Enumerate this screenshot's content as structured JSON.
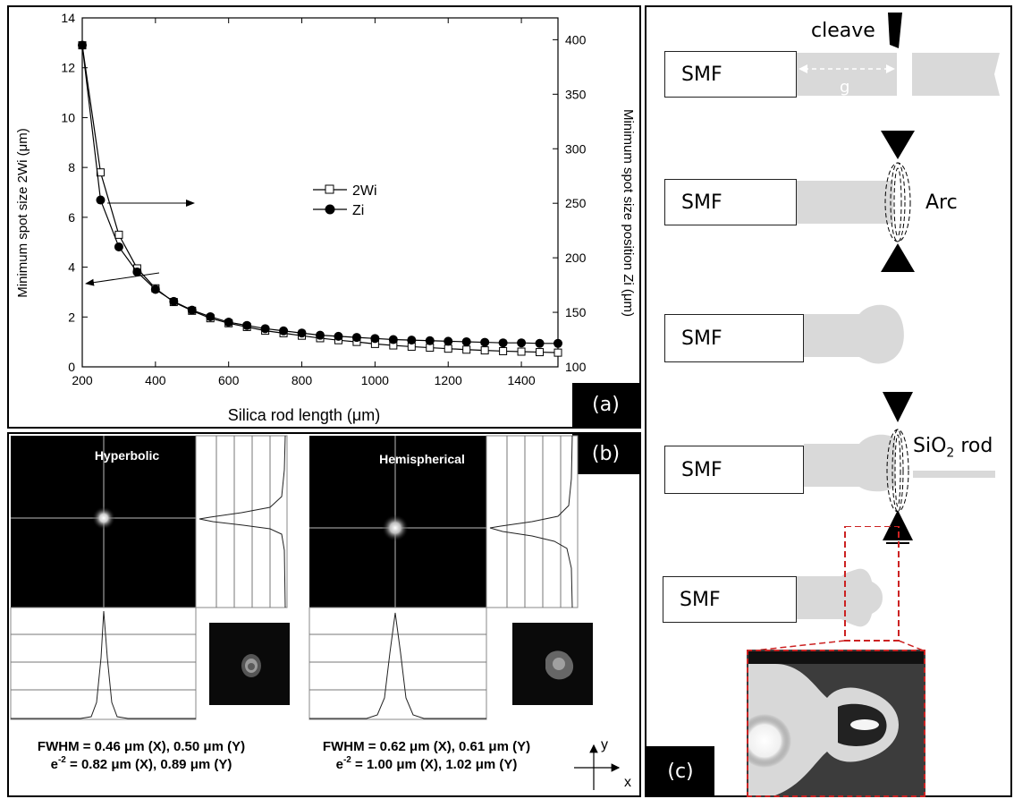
{
  "panel_a": {
    "tag": "(a)",
    "xlabel": "Silica rod length (μm)",
    "ylabel_left": "Minimum spot size 2Wi (μm)",
    "ylabel_right": "Minimum spot size position Zi (μm)",
    "x_ticks": [
      "200",
      "400",
      "600",
      "800",
      "1000",
      "1200",
      "1400"
    ],
    "yl_ticks": [
      "0",
      "2",
      "4",
      "6",
      "8",
      "10",
      "12",
      "14"
    ],
    "yr_ticks": [
      "100",
      "150",
      "200",
      "250",
      "300",
      "350",
      "400"
    ],
    "legend": [
      "2Wi",
      "Zi"
    ]
  },
  "chart_data": {
    "type": "line",
    "x": [
      200,
      250,
      300,
      350,
      400,
      450,
      500,
      550,
      600,
      650,
      700,
      750,
      800,
      850,
      900,
      950,
      1000,
      1050,
      1100,
      1150,
      1200,
      1250,
      1300,
      1350,
      1400,
      1450,
      1500
    ],
    "xlim": [
      200,
      1500
    ],
    "ylim_left": [
      0,
      14
    ],
    "ylim_right": [
      100,
      420
    ],
    "series": [
      {
        "name": "2Wi",
        "axis": "left",
        "marker": "open-square",
        "values": [
          12.9,
          7.8,
          5.3,
          3.95,
          3.15,
          2.6,
          2.25,
          1.95,
          1.75,
          1.6,
          1.45,
          1.35,
          1.25,
          1.15,
          1.07,
          1.0,
          0.92,
          0.86,
          0.81,
          0.77,
          0.73,
          0.69,
          0.66,
          0.63,
          0.61,
          0.59,
          0.57
        ]
      },
      {
        "name": "Zi",
        "axis": "right",
        "marker": "filled-circle",
        "values": [
          395,
          253,
          210,
          187,
          171,
          160,
          152,
          146,
          141,
          138,
          135,
          133,
          131,
          129,
          128,
          127,
          126,
          125,
          124.5,
          124,
          123.5,
          123,
          122.5,
          122,
          122,
          121.5,
          121.5
        ]
      }
    ]
  },
  "panel_b": {
    "tag": "(b)",
    "left": {
      "title": "Hyperbolic",
      "fwhm": "FWHM = 0.46 μm (X), 0.50 μm (Y)",
      "e2_prefix": "e",
      "e2_exp": "-2",
      "e2_rest": " = 0.82 μm (X), 0.89 μm (Y)"
    },
    "right": {
      "title": "Hemispherical",
      "fwhm": "FWHM = 0.62 μm (X), 0.61 μm (Y)",
      "e2_prefix": "e",
      "e2_exp": "-2",
      "e2_rest": " = 1.00 μm (X), 1.02 μm (Y)"
    },
    "axis_x": "x",
    "axis_y": "y"
  },
  "panel_c": {
    "tag": "(c)",
    "smf": "SMF",
    "cleave": "cleave",
    "gap": "g",
    "arc": "Arc",
    "rod_main": "SiO",
    "rod_sub": "2",
    "rod_suffix": " rod"
  },
  "colors": {
    "fiber": "#d9d9d9",
    "dashed_box": "#cc2222"
  }
}
